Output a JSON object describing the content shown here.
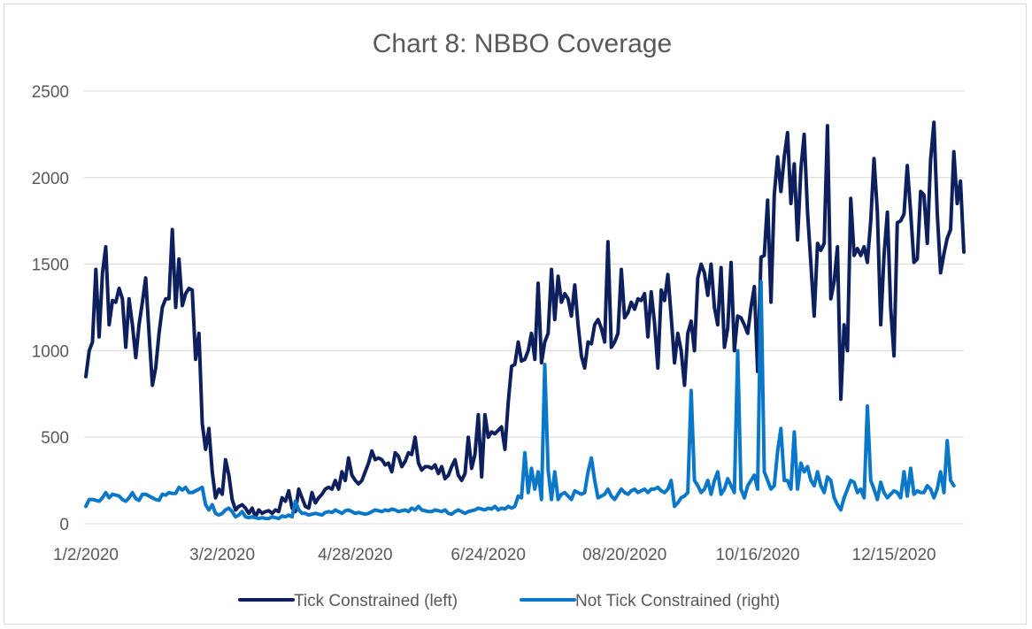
{
  "chart_data": {
    "type": "line",
    "title": "Chart 8: NBBO Coverage",
    "xlabel": "",
    "ylabel": "",
    "ylim": [
      0,
      2500
    ],
    "yticks": [
      "0",
      "500",
      "1000",
      "1500",
      "2000",
      "2500"
    ],
    "xticks": [
      {
        "label": "1/2/2020",
        "index": 0
      },
      {
        "label": "3/2/2020",
        "index": 41
      },
      {
        "label": "4/28/2020",
        "index": 81
      },
      {
        "label": "6/24/2020",
        "index": 121
      },
      {
        "label": "08/20/2020",
        "index": 162
      },
      {
        "label": "10/16/2020",
        "index": 202
      },
      {
        "label": "12/15/2020",
        "index": 243
      }
    ],
    "grid": true,
    "legend": "bottom",
    "series": [
      {
        "name": "Tick Constrained (left)",
        "color": "#0d1f5c",
        "values": [
          850,
          1000,
          1050,
          1470,
          1080,
          1450,
          1600,
          1150,
          1290,
          1280,
          1360,
          1300,
          1020,
          1300,
          1150,
          960,
          1150,
          1280,
          1420,
          1100,
          800,
          900,
          1100,
          1250,
          1300,
          1300,
          1700,
          1250,
          1530,
          1260,
          1330,
          1360,
          1350,
          950,
          1100,
          580,
          430,
          550,
          300,
          150,
          200,
          170,
          370,
          280,
          140,
          80,
          100,
          110,
          90,
          60,
          90,
          40,
          80,
          60,
          70,
          75,
          60,
          80,
          70,
          150,
          130,
          190,
          90,
          70,
          200,
          150,
          100,
          90,
          180,
          120,
          150,
          170,
          200,
          210,
          200,
          250,
          200,
          300,
          250,
          380,
          280,
          250,
          230,
          250,
          300,
          350,
          420,
          370,
          380,
          370,
          340,
          350,
          300,
          410,
          390,
          330,
          360,
          410,
          400,
          500,
          350,
          310,
          330,
          330,
          320,
          340,
          290,
          330,
          260,
          280,
          330,
          370,
          280,
          250,
          290,
          500,
          320,
          400,
          630,
          270,
          630,
          500,
          530,
          520,
          540,
          560,
          430,
          700,
          910,
          920,
          1050,
          940,
          950,
          1000,
          1100,
          950,
          1390,
          930,
          1050,
          1100,
          1470,
          1180,
          1430,
          1280,
          1330,
          1300,
          1200,
          1380,
          1150,
          970,
          900,
          1050,
          1040,
          1150,
          1180,
          1130,
          1050,
          1630,
          1020,
          1050,
          1100,
          1470,
          1190,
          1220,
          1280,
          1240,
          1300,
          1290,
          1330,
          1080,
          1340,
          1160,
          900,
          1350,
          1290,
          1440,
          1200,
          930,
          1100,
          1000,
          800,
          1100,
          1170,
          1000,
          1420,
          1500,
          1450,
          1320,
          1500,
          1250,
          1150,
          1480,
          1020,
          1130,
          1510,
          1000,
          1200,
          1190,
          1150,
          1100,
          1250,
          1370,
          880,
          1540,
          1550,
          1870,
          1280,
          1900,
          2120,
          1920,
          2120,
          2260,
          1850,
          2080,
          1640,
          2050,
          2250,
          1800,
          1500,
          1200,
          1620,
          1580,
          1620,
          2300,
          1300,
          1400,
          1600,
          720,
          1150,
          1000,
          1880,
          1550,
          1590,
          1550,
          1600,
          1510,
          1750,
          2110,
          1800,
          1150,
          1550,
          1800,
          1250,
          970,
          1740,
          1750,
          1790,
          2070,
          1800,
          1510,
          1530,
          1920,
          1900,
          1620,
          2100,
          2320,
          1800,
          1450,
          1560,
          1650,
          1700,
          2150,
          1850,
          1980,
          1570
        ]
      },
      {
        "name": "Not Tick Constrained (right)",
        "color": "#0a77c8",
        "values": [
          100,
          140,
          140,
          135,
          130,
          150,
          180,
          150,
          170,
          165,
          160,
          140,
          130,
          150,
          180,
          145,
          135,
          170,
          170,
          160,
          150,
          140,
          135,
          170,
          165,
          180,
          175,
          175,
          210,
          195,
          210,
          180,
          180,
          190,
          200,
          210,
          110,
          80,
          110,
          60,
          50,
          60,
          80,
          90,
          70,
          40,
          50,
          70,
          40,
          35,
          40,
          35,
          30,
          35,
          30,
          30,
          40,
          35,
          30,
          45,
          40,
          50,
          40,
          130,
          80,
          60,
          60,
          50,
          55,
          60,
          55,
          50,
          65,
          70,
          65,
          80,
          70,
          60,
          75,
          80,
          70,
          60,
          65,
          60,
          55,
          60,
          70,
          80,
          75,
          70,
          80,
          75,
          85,
          80,
          70,
          75,
          80,
          70,
          90,
          80,
          100,
          80,
          75,
          70,
          70,
          80,
          75,
          70,
          80,
          60,
          55,
          70,
          80,
          70,
          60,
          70,
          75,
          80,
          90,
          85,
          80,
          90,
          85,
          100,
          80,
          90,
          85,
          100,
          90,
          100,
          160,
          150,
          410,
          180,
          320,
          200,
          300,
          140,
          920,
          310,
          140,
          300,
          140,
          170,
          180,
          160,
          140,
          190,
          180,
          170,
          180,
          300,
          380,
          250,
          150,
          160,
          170,
          200,
          160,
          140,
          170,
          200,
          180,
          170,
          190,
          200,
          180,
          190,
          200,
          180,
          200,
          200,
          210,
          190,
          180,
          200,
          250,
          100,
          120,
          150,
          160,
          180,
          770,
          250,
          220,
          180,
          200,
          250,
          170,
          250,
          300,
          170,
          200,
          260,
          220,
          180,
          1000,
          200,
          150,
          220,
          250,
          280,
          200,
          1400,
          300,
          250,
          200,
          220,
          420,
          550,
          250,
          250,
          200,
          530,
          200,
          350,
          300,
          330,
          250,
          220,
          300,
          220,
          180,
          270,
          250,
          150,
          110,
          80,
          150,
          200,
          250,
          240,
          180,
          200,
          150,
          680,
          250,
          200,
          140,
          240,
          180,
          150,
          170,
          190,
          180,
          150,
          300,
          160,
          320,
          170,
          190,
          180,
          180,
          220,
          200,
          150,
          200,
          300,
          180,
          480,
          250,
          220
        ],
        "secondary_ylim": [
          0,
          2500
        ]
      }
    ]
  }
}
